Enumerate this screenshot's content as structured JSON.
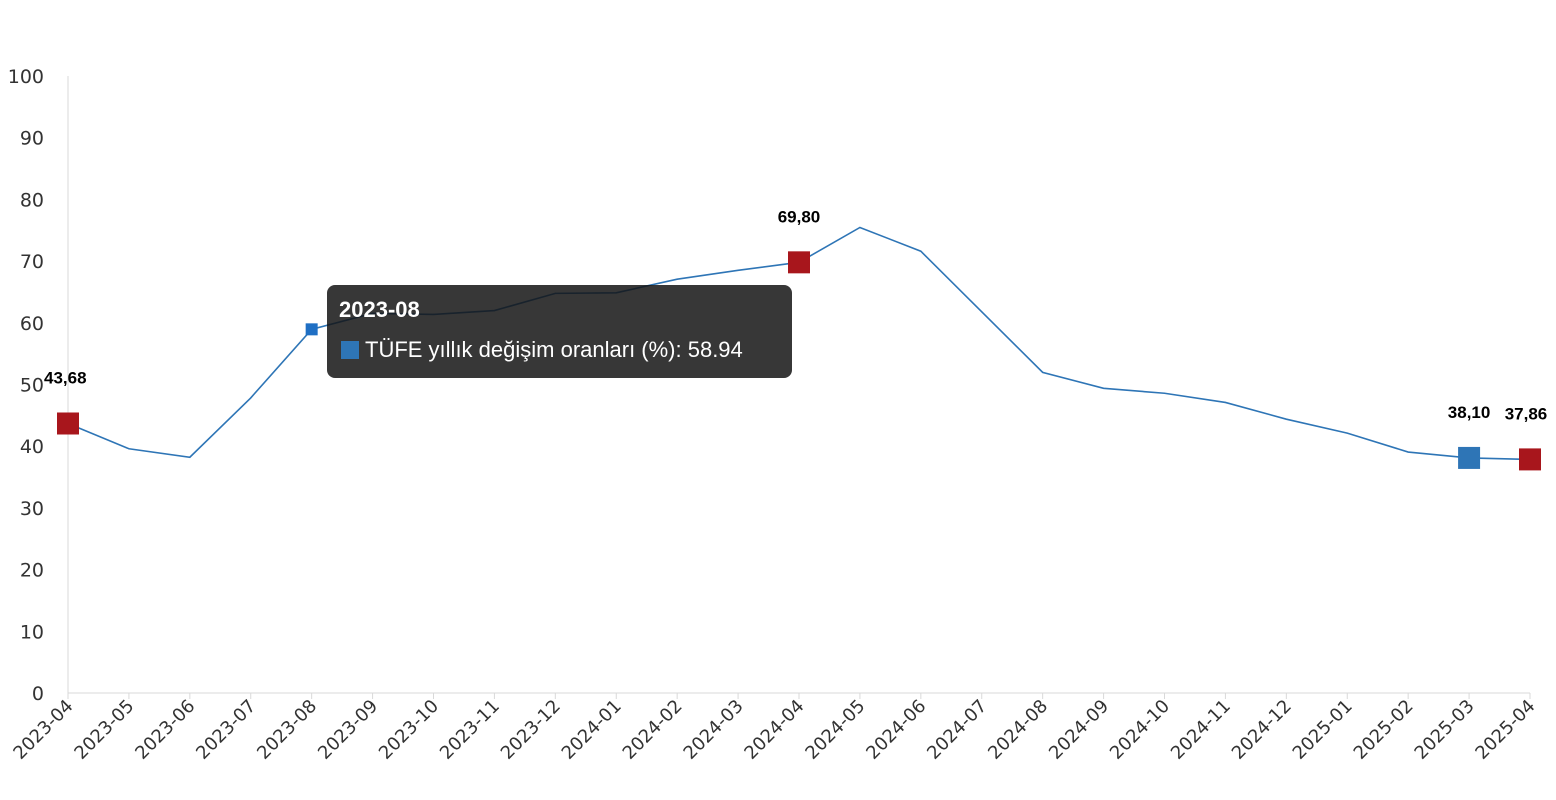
{
  "chart_data": {
    "type": "line",
    "title": "",
    "xlabel": "",
    "ylabel": "",
    "ylim": [
      0,
      100
    ],
    "yticks": [
      0,
      10,
      20,
      30,
      40,
      50,
      60,
      70,
      80,
      90,
      100
    ],
    "categories": [
      "2023-04",
      "2023-05",
      "2023-06",
      "2023-07",
      "2023-08",
      "2023-09",
      "2023-10",
      "2023-11",
      "2023-12",
      "2024-01",
      "2024-02",
      "2024-03",
      "2024-04",
      "2024-05",
      "2024-06",
      "2024-07",
      "2024-08",
      "2024-09",
      "2024-10",
      "2024-11",
      "2024-12",
      "2025-01",
      "2025-02",
      "2025-03",
      "2025-04"
    ],
    "series": [
      {
        "name": "TÜFE yıllık değişim oranları (%)",
        "values": [
          43.68,
          39.59,
          38.21,
          47.83,
          58.94,
          61.53,
          61.36,
          61.98,
          64.77,
          64.86,
          67.07,
          68.5,
          69.8,
          75.45,
          71.6,
          61.78,
          51.97,
          49.38,
          48.58,
          47.09,
          44.38,
          42.12,
          39.05,
          38.1,
          37.86
        ],
        "color": "#2e75b6"
      }
    ],
    "highlighted_points": [
      {
        "category": "2023-04",
        "label": "43,68",
        "color": "#a8161c"
      },
      {
        "category": "2024-04",
        "label": "69,80",
        "color": "#a8161c"
      },
      {
        "category": "2025-03",
        "label": "38,10",
        "color": "#2e75b6"
      },
      {
        "category": "2025-04",
        "label": "37,86",
        "color": "#a8161c"
      }
    ],
    "grid": false,
    "legend": "none"
  },
  "tooltip": {
    "title": "2023-08",
    "series_name": "TÜFE yıllık değişim oranları (%)",
    "value": "58.94",
    "text": "TÜFE yıllık değişim oranları (%): 58.94",
    "color": "#2e75b6"
  }
}
